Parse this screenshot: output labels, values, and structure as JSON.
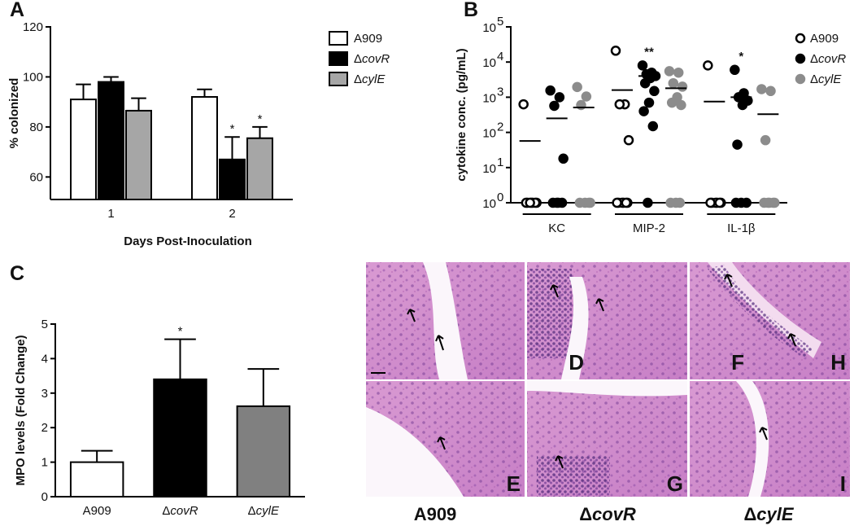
{
  "chart_data": [
    {
      "panel": "A",
      "type": "bar",
      "categories": [
        "1",
        "2"
      ],
      "series": [
        {
          "name": "A909",
          "color": "#ffffff",
          "values": [
            91,
            92
          ],
          "errors": [
            6,
            3
          ]
        },
        {
          "name": "ΔcovR",
          "color": "#000000",
          "values": [
            98,
            67
          ],
          "errors": [
            2,
            9
          ],
          "significance": [
            null,
            "*"
          ]
        },
        {
          "name": "ΔcylE",
          "color": "#a6a6a6",
          "values": [
            86.5,
            75.5
          ],
          "errors": [
            5,
            4.5
          ],
          "significance": [
            null,
            "*"
          ]
        }
      ],
      "ylim": [
        51,
        120
      ],
      "yticks": [
        60,
        80,
        100,
        120
      ],
      "ylabel": "% colonized",
      "xlabel": "Days Post-Inoculation"
    },
    {
      "panel": "B",
      "type": "dot",
      "log": true,
      "categories": [
        "KC",
        "MIP-2",
        "IL-1β"
      ],
      "series": [
        {
          "name": "A909",
          "color": "#000000",
          "marker": "open",
          "values": [
            [
              630,
              1,
              1,
              1,
              1,
              1,
              1,
              1
            ],
            [
              21000,
              630,
              630,
              60,
              1,
              1,
              1,
              1,
              1,
              1
            ],
            [
              8000,
              1,
              1,
              1,
              1,
              1,
              1
            ]
          ],
          "means": [
            57,
            1600,
            750
          ]
        },
        {
          "name": "ΔcovR",
          "color": "#000000",
          "marker": "filled",
          "values": [
            [
              1550,
              1000,
              570,
              18,
              1,
              1,
              1,
              1
            ],
            [
              8000,
              5000,
              4500,
              4000,
              3500,
              2500,
              1500,
              700,
              400,
              150,
              1
            ],
            [
              6000,
              1300,
              1000,
              800,
              600,
              45,
              1,
              1,
              1
            ]
          ],
          "means": [
            250,
            4000,
            1000
          ],
          "significance": [
            null,
            "**",
            "*"
          ]
        },
        {
          "name": "ΔcylE",
          "color": "#8c8c8c",
          "marker": "filled",
          "values": [
            [
              1950,
              1050,
              600,
              1,
              1,
              1,
              1
            ],
            [
              5500,
              5000,
              2500,
              2000,
              1000,
              700,
              600,
              1,
              1,
              1
            ],
            [
              1700,
              1500,
              60,
              1,
              1,
              1,
              1,
              1
            ]
          ],
          "means": [
            510,
            1800,
            330
          ]
        }
      ],
      "ylim": [
        1,
        100000
      ],
      "yticks": [
        {
          "value": 1,
          "label": "10",
          "exponent": "0"
        },
        {
          "value": 10,
          "label": "10",
          "exponent": "1"
        },
        {
          "value": 100,
          "label": "10",
          "exponent": "2"
        },
        {
          "value": 1000,
          "label": "10",
          "exponent": "3"
        },
        {
          "value": 10000,
          "label": "10",
          "exponent": "4"
        },
        {
          "value": 100000,
          "label": "10",
          "exponent": "5"
        }
      ],
      "ylabel": "cytokine conc. (pg/mL)"
    },
    {
      "panel": "C",
      "type": "bar",
      "categories": [
        "A909",
        "ΔcovR",
        "ΔcylE"
      ],
      "colors": [
        "#ffffff",
        "#000000",
        "#808080"
      ],
      "values": [
        1,
        3.4,
        2.62
      ],
      "errors": [
        0.33,
        1.16,
        1.08
      ],
      "significance": [
        null,
        "*",
        null
      ],
      "ylim": [
        0,
        5
      ],
      "yticks": [
        0,
        1,
        2,
        3,
        4,
        5
      ],
      "ylabel": "MPO levels (Fold Change)"
    }
  ],
  "histology": {
    "letters": [
      "D",
      "F",
      "H",
      "E",
      "G",
      "I"
    ],
    "columns": [
      "A909",
      "ΔcovR",
      "ΔcylE"
    ]
  }
}
